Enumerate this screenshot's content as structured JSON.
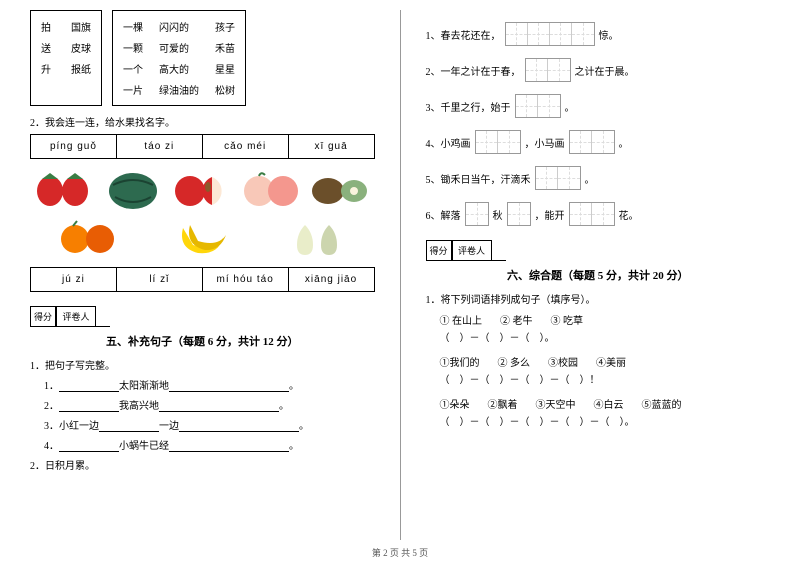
{
  "left": {
    "box1": {
      "c1": [
        "拍",
        "送",
        "升"
      ],
      "c2": [
        "国旗",
        "皮球",
        "报纸"
      ]
    },
    "box2": {
      "c1": [
        "一棵",
        "一颗",
        "一个",
        "一片"
      ],
      "c2": [
        "闪闪的",
        "可爱的",
        "高大的",
        "绿油油的"
      ],
      "c3": [
        "孩子",
        "禾苗",
        "星星",
        "松树"
      ]
    },
    "q2_label": "2．我会连一连，给水果找名字。",
    "pinyin_top": [
      "píng guǒ",
      "táo zi",
      "cǎo méi",
      "xī guā"
    ],
    "pinyin_bottom": [
      "jú zi",
      "lí zǐ",
      "mí hóu táo",
      "xiāng jiāo"
    ],
    "fruits": [
      {
        "name": "strawberry",
        "c1": "#d62828",
        "c2": "#3a7d44"
      },
      {
        "name": "watermelon",
        "c1": "#2d6a4f",
        "c2": "#1b4332"
      },
      {
        "name": "apple",
        "c1": "#d62828",
        "c2": "#fff"
      },
      {
        "name": "peach",
        "c1": "#f8c8b8",
        "c2": "#f4978e"
      },
      {
        "name": "kiwi",
        "c1": "#6b4f2a",
        "c2": "#8ab17d"
      },
      {
        "name": "orange",
        "c1": "#f77f00",
        "c2": "#e85d04"
      },
      {
        "name": "banana",
        "c1": "#ffd60a",
        "c2": "#e6b800"
      },
      {
        "name": "pear",
        "c1": "#e9edc9",
        "c2": "#ccd5ae"
      }
    ],
    "score_labels": [
      "得分",
      "评卷人"
    ],
    "section5_title": "五、补充句子（每题 6 分，共计 12 分）",
    "q1_label": "1．把句子写完整。",
    "lines": [
      {
        "pre": "1．",
        "mid": "太阳渐渐地",
        "post": "。"
      },
      {
        "pre": "2．",
        "mid": "我高兴地",
        "post": "。"
      },
      {
        "pre": "3．小红一边",
        "mid": "一边",
        "post": "。"
      },
      {
        "pre": "4．",
        "mid": "小蜗牛已经",
        "post": "。"
      }
    ],
    "q2_bottom": "2．日积月累。"
  },
  "right": {
    "fills": [
      {
        "n": "1、",
        "a": "春去花还在，",
        "boxes": 4,
        "b": "惊。"
      },
      {
        "n": "2、",
        "a": "一年之计在于春，",
        "boxes": 2,
        "b": "之计在于晨。"
      },
      {
        "n": "3、",
        "a": "千里之行，始于",
        "boxes": 2,
        "b": "。"
      },
      {
        "n": "4、",
        "a": "小鸡画",
        "boxes": 2,
        "b": "，小马画",
        "boxes2": 2,
        "c": "。"
      },
      {
        "n": "5、",
        "a": "锄禾日当午，汗滴禾",
        "boxes": 2,
        "b": "。"
      },
      {
        "n": "6、",
        "a": "解落",
        "boxes": 1,
        "b": "秋",
        "boxes2": 1,
        "c": "，能开",
        "boxes3": 2,
        "d": "花。"
      }
    ],
    "score_labels": [
      "得分",
      "评卷人"
    ],
    "section6_title": "六、综合题（每题 5 分，共计 20 分）",
    "q1_label": "1．将下列词语排列成句子（填序号）。",
    "groups": [
      {
        "opts": [
          "① 在山上",
          "② 老牛",
          "③ 吃草"
        ],
        "paren": "（　）－（　）－（　）。"
      },
      {
        "opts": [
          "①我们的",
          "② 多么",
          "③校园",
          "④美丽"
        ],
        "paren": "（　）－（　）－（　）－（　）！"
      },
      {
        "opts": [
          "①朵朵",
          "②飘着",
          "③天空中",
          "④白云",
          "⑤蓝蓝的"
        ],
        "paren": "（　）－（　）－（　）－（　）－（　）。"
      }
    ]
  },
  "footer": "第 2 页  共 5 页"
}
